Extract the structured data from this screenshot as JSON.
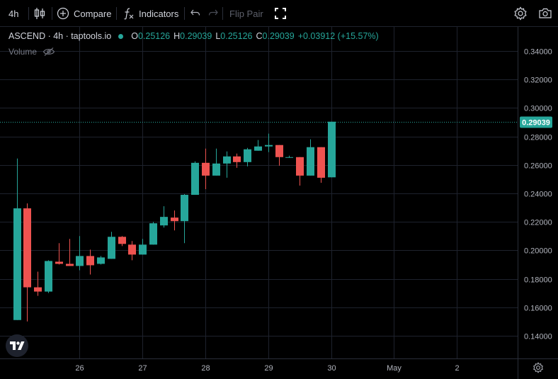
{
  "toolbar": {
    "interval": "4h",
    "compare": "Compare",
    "indicators": "Indicators",
    "flip_pair": "Flip Pair"
  },
  "legend": {
    "symbol": "ASCEND · 4h · taptools.io",
    "o_label": "O",
    "o": "0.25126",
    "h_label": "H",
    "h": "0.29039",
    "l_label": "L",
    "l": "0.25126",
    "c_label": "C",
    "c": "0.29039",
    "change": "+0.03912 (+15.57%)"
  },
  "volume_label": "Volume",
  "colors": {
    "up": "#26a69a",
    "down": "#ef5350",
    "background": "#000000",
    "grid": "#1e222d",
    "axis_text": "#b2b5be"
  },
  "chart_data": {
    "type": "candlestick",
    "title": "",
    "yticks": [
      "0.34000",
      "0.32000",
      "0.30000",
      "0.28000",
      "0.26000",
      "0.24000",
      "0.22000",
      "0.20000",
      "0.18000",
      "0.16000",
      "0.14000"
    ],
    "ylim": [
      0.124,
      0.357
    ],
    "xticks": [
      {
        "label": "26",
        "t": 6
      },
      {
        "label": "27",
        "t": 12
      },
      {
        "label": "28",
        "t": 18
      },
      {
        "label": "29",
        "t": 24
      },
      {
        "label": "30",
        "t": 30
      },
      {
        "label": "May",
        "t": 36
      },
      {
        "label": "2",
        "t": 42
      }
    ],
    "xlim": [
      -1.6,
      47.8
    ],
    "last_price": "0.29039",
    "last_price_value": 0.29039,
    "grid": true,
    "candles": [
      {
        "t": 0,
        "o": 0.151,
        "h": 0.2645,
        "l": 0.151,
        "c": 0.2295
      },
      {
        "t": 1,
        "o": 0.2295,
        "h": 0.233,
        "l": 0.15,
        "c": 0.174
      },
      {
        "t": 2,
        "o": 0.174,
        "h": 0.185,
        "l": 0.168,
        "c": 0.171
      },
      {
        "t": 3,
        "o": 0.171,
        "h": 0.193,
        "l": 0.17,
        "c": 0.1925
      },
      {
        "t": 4,
        "o": 0.192,
        "h": 0.205,
        "l": 0.19,
        "c": 0.1905
      },
      {
        "t": 5,
        "o": 0.1905,
        "h": 0.208,
        "l": 0.189,
        "c": 0.189
      },
      {
        "t": 6,
        "o": 0.189,
        "h": 0.21,
        "l": 0.186,
        "c": 0.196
      },
      {
        "t": 7,
        "o": 0.196,
        "h": 0.2005,
        "l": 0.183,
        "c": 0.1895
      },
      {
        "t": 8,
        "o": 0.1905,
        "h": 0.196,
        "l": 0.19,
        "c": 0.195
      },
      {
        "t": 9,
        "o": 0.194,
        "h": 0.213,
        "l": 0.194,
        "c": 0.2095
      },
      {
        "t": 10,
        "o": 0.2095,
        "h": 0.21,
        "l": 0.203,
        "c": 0.2045
      },
      {
        "t": 11,
        "o": 0.204,
        "h": 0.2065,
        "l": 0.193,
        "c": 0.197
      },
      {
        "t": 12,
        "o": 0.197,
        "h": 0.208,
        "l": 0.197,
        "c": 0.204
      },
      {
        "t": 13,
        "o": 0.204,
        "h": 0.22,
        "l": 0.204,
        "c": 0.219
      },
      {
        "t": 14,
        "o": 0.2175,
        "h": 0.231,
        "l": 0.216,
        "c": 0.2235
      },
      {
        "t": 15,
        "o": 0.223,
        "h": 0.228,
        "l": 0.214,
        "c": 0.2205
      },
      {
        "t": 16,
        "o": 0.2205,
        "h": 0.2395,
        "l": 0.205,
        "c": 0.239
      },
      {
        "t": 17,
        "o": 0.239,
        "h": 0.2625,
        "l": 0.239,
        "c": 0.2615
      },
      {
        "t": 18,
        "o": 0.2615,
        "h": 0.2715,
        "l": 0.243,
        "c": 0.2525
      },
      {
        "t": 19,
        "o": 0.2525,
        "h": 0.2715,
        "l": 0.2525,
        "c": 0.261
      },
      {
        "t": 20,
        "o": 0.261,
        "h": 0.2695,
        "l": 0.251,
        "c": 0.266
      },
      {
        "t": 21,
        "o": 0.266,
        "h": 0.268,
        "l": 0.258,
        "c": 0.262
      },
      {
        "t": 22,
        "o": 0.262,
        "h": 0.272,
        "l": 0.259,
        "c": 0.271
      },
      {
        "t": 23,
        "o": 0.27,
        "h": 0.2775,
        "l": 0.27,
        "c": 0.273
      },
      {
        "t": 24,
        "o": 0.273,
        "h": 0.282,
        "l": 0.269,
        "c": 0.274
      },
      {
        "t": 25,
        "o": 0.274,
        "h": 0.274,
        "l": 0.2595,
        "c": 0.2655
      },
      {
        "t": 26,
        "o": 0.2655,
        "h": 0.2665,
        "l": 0.265,
        "c": 0.2655
      },
      {
        "t": 27,
        "o": 0.2655,
        "h": 0.2655,
        "l": 0.2455,
        "c": 0.2525
      },
      {
        "t": 28,
        "o": 0.2525,
        "h": 0.278,
        "l": 0.2525,
        "c": 0.2725
      },
      {
        "t": 29,
        "o": 0.2725,
        "h": 0.2725,
        "l": 0.2475,
        "c": 0.251
      },
      {
        "t": 30,
        "o": 0.2513,
        "h": 0.2904,
        "l": 0.2513,
        "c": 0.2904
      }
    ]
  }
}
